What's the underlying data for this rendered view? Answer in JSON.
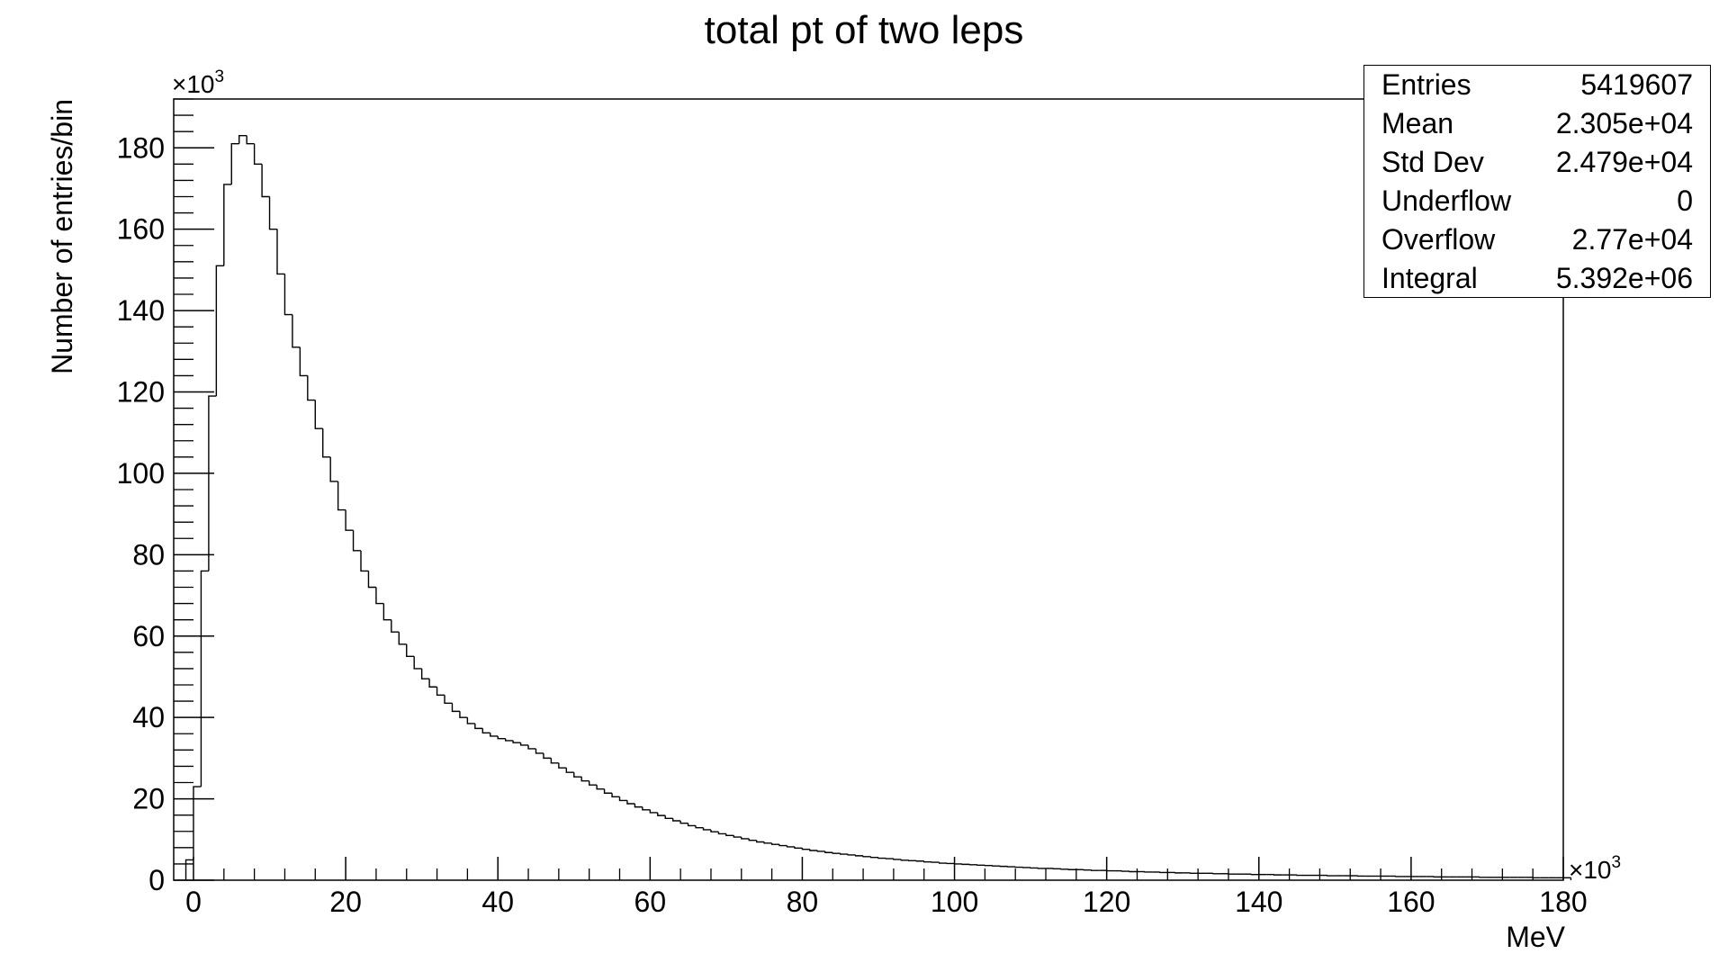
{
  "chart_data": {
    "type": "histogram",
    "title": "total pt of two leps",
    "xlabel": "MeV",
    "ylabel": "Number of entries/bin",
    "x_multiplier": "×10",
    "x_multiplier_exp": "3",
    "y_multiplier": "×10",
    "y_multiplier_exp": "3",
    "xlim": [
      -2.6,
      180
    ],
    "ylim": [
      0,
      192
    ],
    "x_ticks": [
      0,
      20,
      40,
      60,
      80,
      100,
      120,
      140,
      160,
      180
    ],
    "x_tick_labels": [
      "0",
      "20",
      "40",
      "60",
      "80",
      "100",
      "120",
      "140",
      "160",
      "180"
    ],
    "y_ticks": [
      0,
      20,
      40,
      60,
      80,
      100,
      120,
      140,
      160,
      180
    ],
    "y_tick_labels": [
      "0",
      "20",
      "40",
      "60",
      "80",
      "100",
      "120",
      "140",
      "160",
      "180"
    ],
    "bin_start": -1.0,
    "bin_width": 1.0,
    "bin_values": [
      5,
      23,
      76,
      119,
      151,
      171,
      181,
      183,
      181,
      176,
      168,
      160,
      149,
      139,
      131,
      124,
      118,
      111,
      104,
      98,
      91,
      86,
      81,
      76,
      72,
      68,
      64,
      61,
      58,
      55,
      52,
      49.5,
      47.5,
      45.5,
      43.5,
      41.5,
      40,
      38.5,
      37.3,
      36.2,
      35.4,
      34.8,
      34.3,
      33.8,
      33.2,
      32.3,
      31.2,
      30,
      28.8,
      27.6,
      26.5,
      25.4,
      24.4,
      23.4,
      22.4,
      21.4,
      20.5,
      19.6,
      18.8,
      18,
      17.3,
      16.6,
      15.9,
      15.2,
      14.6,
      14,
      13.4,
      12.9,
      12.4,
      11.9,
      11.4,
      11,
      10.6,
      10.2,
      9.8,
      9.4,
      9.1,
      8.8,
      8.5,
      8.2,
      7.9,
      7.6,
      7.3,
      7.1,
      6.8,
      6.6,
      6.4,
      6.2,
      6,
      5.8,
      5.6,
      5.4,
      5.3,
      5.1,
      4.9,
      4.8,
      4.7,
      4.5,
      4.4,
      4.2,
      4.1,
      4,
      3.9,
      3.8,
      3.7,
      3.6,
      3.5,
      3.4,
      3.3,
      3.2,
      3.1,
      3,
      2.9,
      2.9,
      2.8,
      2.7,
      2.6,
      2.6,
      2.5,
      2.4,
      2.4,
      2.3,
      2.3,
      2.2,
      2.1,
      2.1,
      2,
      2,
      1.9,
      1.9,
      1.8,
      1.8,
      1.7,
      1.7,
      1.7,
      1.6,
      1.6,
      1.5,
      1.5,
      1.5,
      1.4,
      1.4,
      1.4,
      1.3,
      1.3,
      1.3,
      1.2,
      1.2,
      1.2,
      1.2,
      1.1,
      1.1,
      1.1,
      1.1,
      1,
      1,
      1,
      1,
      1,
      0.9,
      0.9,
      0.9,
      0.9,
      0.9,
      0.8,
      0.8,
      0.8,
      0.8,
      0.8,
      0.8,
      0.7,
      0.7,
      0.7,
      0.7,
      0.7,
      0.7,
      0.7,
      0.6,
      0.6,
      0.6,
      0.6,
      0.6
    ]
  },
  "stats": [
    {
      "label": "Entries",
      "value": "5419607"
    },
    {
      "label": "Mean",
      "value": "2.305e+04"
    },
    {
      "label": "Std Dev",
      "value": "2.479e+04"
    },
    {
      "label": "Underflow",
      "value": "0"
    },
    {
      "label": "Overflow",
      "value": "2.77e+04"
    },
    {
      "label": "Integral",
      "value": "5.392e+06"
    }
  ]
}
